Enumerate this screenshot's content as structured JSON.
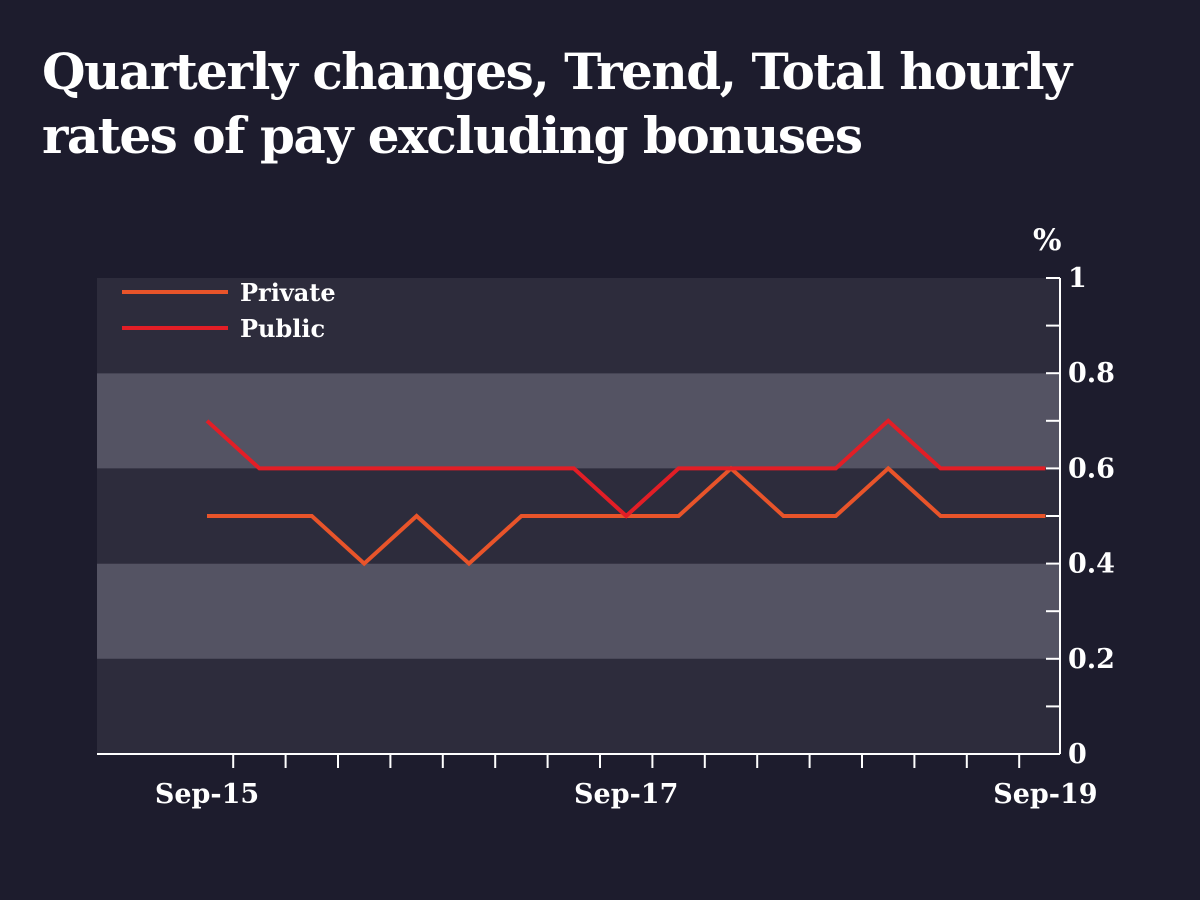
{
  "title": "Quarterly changes, Trend, Total hourly rates of pay excluding bonuses",
  "colors": {
    "background": "#1d1c2d",
    "band_dark": "#2d2c3c",
    "band_light": "#545363",
    "private": "#e8542a",
    "public": "#e21e26",
    "axis": "#ffffff"
  },
  "chart_data": {
    "type": "line",
    "title": "Quarterly changes, Trend, Total hourly rates of pay excluding bonuses",
    "xlabel": "",
    "ylabel": "%",
    "ylim": [
      0,
      1
    ],
    "yticks": [
      0,
      0.2,
      0.4,
      0.6,
      0.8,
      1
    ],
    "ytick_labels": [
      "0",
      "0.2",
      "0.4",
      "0.6",
      "0.8",
      "1"
    ],
    "x": [
      "Sep-15",
      "Dec-15",
      "Mar-16",
      "Jun-16",
      "Sep-16",
      "Dec-16",
      "Mar-17",
      "Jun-17",
      "Sep-17",
      "Dec-17",
      "Mar-18",
      "Jun-18",
      "Sep-18",
      "Dec-18",
      "Mar-19",
      "Jun-19",
      "Sep-19"
    ],
    "x_tick_labels": [
      {
        "index": 0,
        "label": "Sep-15"
      },
      {
        "index": 8,
        "label": "Sep-17"
      },
      {
        "index": 16,
        "label": "Sep-19"
      }
    ],
    "legend_position": "top-left",
    "series": [
      {
        "name": "Private",
        "color": "#e8542a",
        "values": [
          0.5,
          0.5,
          0.5,
          0.4,
          0.5,
          0.4,
          0.5,
          0.5,
          0.5,
          0.5,
          0.6,
          0.5,
          0.5,
          0.6,
          0.5,
          0.5,
          0.5
        ]
      },
      {
        "name": "Public",
        "color": "#e21e26",
        "values": [
          0.7,
          0.6,
          0.6,
          0.6,
          0.6,
          0.6,
          0.6,
          0.6,
          0.5,
          0.6,
          0.6,
          0.6,
          0.6,
          0.7,
          0.6,
          0.6,
          0.6
        ]
      }
    ]
  }
}
